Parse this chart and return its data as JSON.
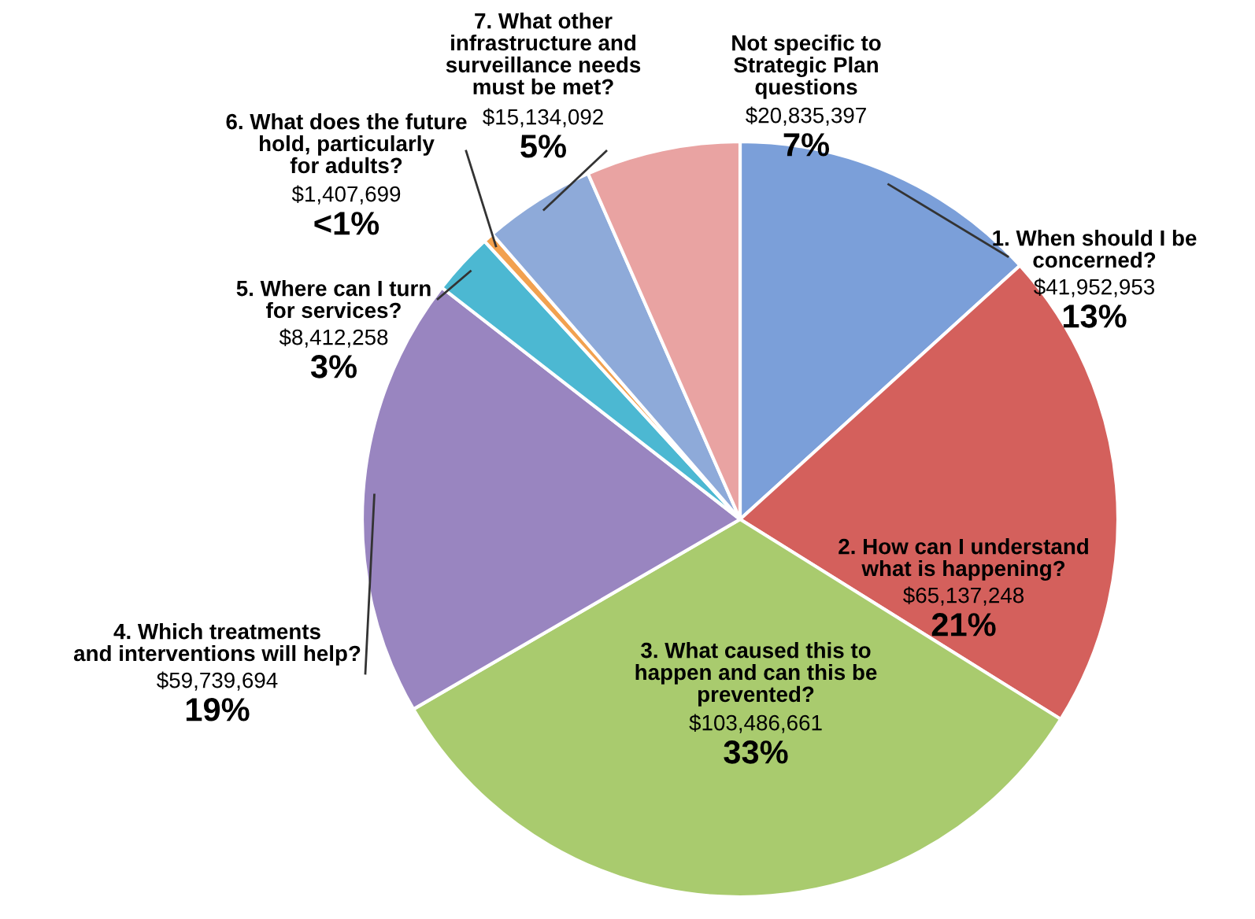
{
  "chart_data": {
    "type": "pie",
    "categories": [
      "1. When should I be\nconcerned?",
      "2. How can I understand\nwhat is happening?",
      "3. What caused this to\nhappen and can this be\nprevented?",
      "4. Which treatments\nand interventions will help?",
      "5. Where can I turn\nfor services?",
      "6. What does the future\nhold, particularly\nfor adults?",
      "7. What other\ninfrastructure and\nsurveillance needs\nmust be met?",
      "Not specific to\nStrategic Plan\nquestions"
    ],
    "values": [
      41952953,
      65137248,
      103486661,
      59739694,
      8412258,
      1407699,
      15134092,
      20835397
    ],
    "colors": [
      "#7b9fd9",
      "#d4605c",
      "#a9cb6e",
      "#9985c0",
      "#4cb8d2",
      "#f2a14f",
      "#8eaad9",
      "#e9a3a2"
    ],
    "value_labels": [
      "$41,952,953\n13%",
      "$65,137,248\n21%",
      "$103,486,661\n33%",
      "$59,739,694\n19%",
      "$8,412,258\n3%",
      "$1,407,699\n<1%",
      "$15,134,092\n5%",
      "$20,835,397\n7%"
    ]
  }
}
